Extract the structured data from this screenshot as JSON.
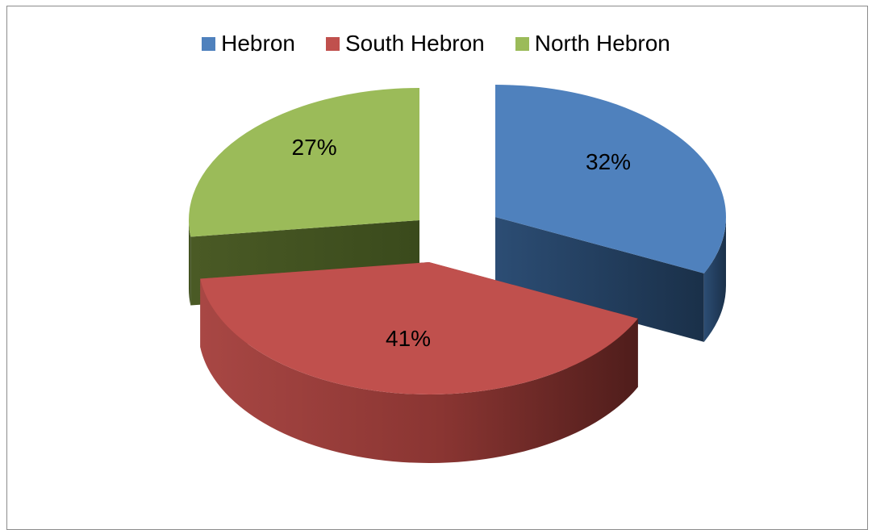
{
  "chart_data": {
    "type": "pie",
    "style": "3d-exploded",
    "categories": [
      "Hebron",
      "South Hebron",
      "North Hebron"
    ],
    "values": [
      32,
      41,
      27
    ],
    "labels": [
      "32%",
      "41%",
      "27%"
    ],
    "colors": [
      "#4f81bd",
      "#c0504d",
      "#9bbb59"
    ],
    "legend_position": "top"
  }
}
